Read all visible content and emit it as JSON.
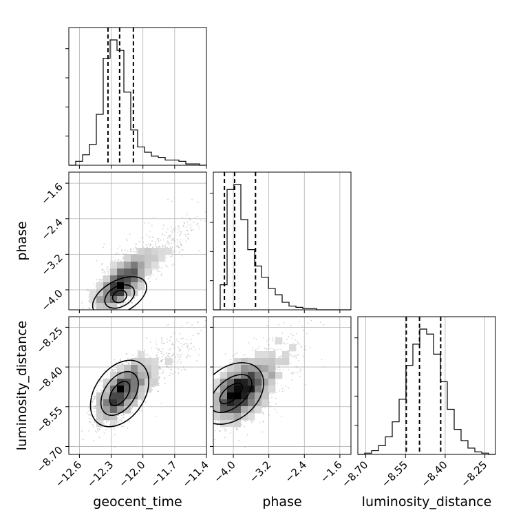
{
  "chart_data": {
    "type": "corner",
    "parameters": [
      "geocent_time",
      "phase",
      "luminosity_distance"
    ],
    "axis_labels": {
      "x": [
        "geocent_time",
        "phase",
        "luminosity_distance"
      ],
      "y": [
        "phase",
        "luminosity_distance"
      ]
    },
    "ranges": {
      "geocent_time": [
        -12.7,
        -11.4
      ],
      "phase": [
        -4.45,
        -1.35
      ],
      "luminosity_distance": [
        -8.73,
        -8.21
      ]
    },
    "ticks": {
      "geocent_time": [
        {
          "v": -12.6,
          "label": "−12.6"
        },
        {
          "v": -12.3,
          "label": "−12.3"
        },
        {
          "v": -12.0,
          "label": "−12.0"
        },
        {
          "v": -11.7,
          "label": "−11.7"
        },
        {
          "v": -11.4,
          "label": "−11.4"
        }
      ],
      "phase": [
        {
          "v": -4.0,
          "label": "−4.0"
        },
        {
          "v": -3.2,
          "label": "−3.2"
        },
        {
          "v": -2.4,
          "label": "−2.4"
        },
        {
          "v": -1.6,
          "label": "−1.6"
        }
      ],
      "luminosity_distance": [
        {
          "v": -8.7,
          "label": "−8.70"
        },
        {
          "v": -8.55,
          "label": "−8.55"
        },
        {
          "v": -8.4,
          "label": "−8.40"
        },
        {
          "v": -8.25,
          "label": "−8.25"
        }
      ]
    },
    "quantiles": {
      "geocent_time": [
        -12.33,
        -12.22,
        -12.09
      ],
      "phase": [
        -4.2,
        -3.97,
        -3.5
      ],
      "luminosity_distance": [
        -8.547,
        -8.497,
        -8.417
      ]
    },
    "histograms": {
      "geocent_time": {
        "edges_range": [
          -12.7,
          -11.4
        ],
        "counts": [
          0,
          3,
          8,
          16,
          39,
          82,
          96,
          88,
          56,
          27,
          14,
          10,
          7,
          6,
          4,
          4,
          3,
          1,
          1,
          0
        ]
      },
      "phase": {
        "edges_range": [
          -4.45,
          -1.35
        ],
        "counts": [
          0,
          20,
          96,
          100,
          72,
          48,
          35,
          26,
          17,
          12,
          6,
          3,
          2,
          1,
          1,
          0,
          0,
          0,
          0,
          0
        ]
      },
      "luminosity_distance": {
        "edges_range": [
          -8.73,
          -8.21
        ],
        "counts": [
          0,
          1,
          3,
          7,
          14,
          26,
          44,
          71,
          88,
          100,
          96,
          80,
          58,
          36,
          20,
          11,
          5,
          2,
          1,
          0
        ]
      }
    },
    "grid": true,
    "color": "#000000"
  }
}
